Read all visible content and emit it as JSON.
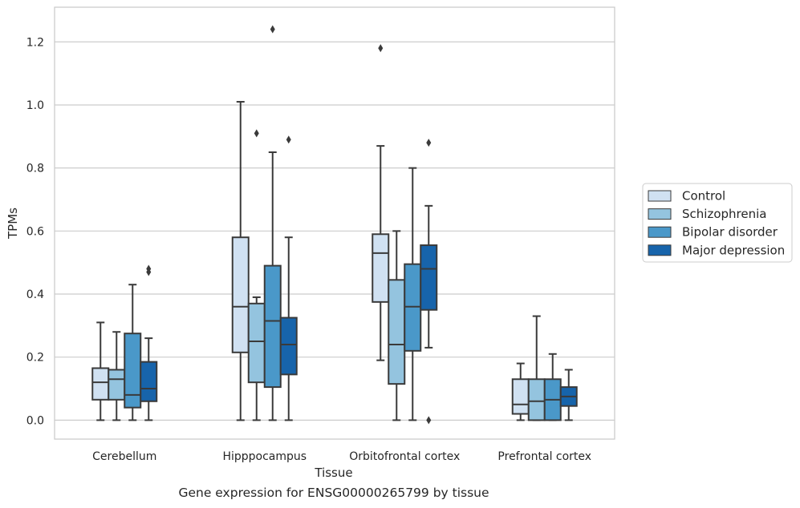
{
  "caption": "Gene expression for ENSG00000265799 by tissue",
  "chart_data": {
    "type": "box",
    "xlabel": "Tissue",
    "ylabel": "TPMs",
    "ylim": [
      -0.06,
      1.31
    ],
    "yticks": [
      0.0,
      0.2,
      0.4,
      0.6,
      0.8,
      1.0,
      1.2
    ],
    "ytick_labels": [
      "0.0",
      "0.2",
      "0.4",
      "0.6",
      "0.8",
      "1.0",
      "1.2"
    ],
    "grid": "horizontal",
    "legend_position": "right",
    "categories": [
      "Cerebellum",
      "Hipppocampus",
      "Orbitofrontal cortex",
      "Prefrontal cortex"
    ],
    "series": [
      {
        "name": "Control",
        "color": "#d0e1f2",
        "boxes": [
          {
            "whislo": 0.0,
            "q1": 0.065,
            "med": 0.12,
            "q3": 0.165,
            "whishi": 0.31,
            "fliers": []
          },
          {
            "whislo": 0.0,
            "q1": 0.215,
            "med": 0.36,
            "q3": 0.58,
            "whishi": 1.01,
            "fliers": []
          },
          {
            "whislo": 0.19,
            "q1": 0.375,
            "med": 0.53,
            "q3": 0.59,
            "whishi": 0.87,
            "fliers": [
              1.18
            ]
          },
          {
            "whislo": 0.0,
            "q1": 0.02,
            "med": 0.05,
            "q3": 0.13,
            "whishi": 0.18,
            "fliers": []
          }
        ]
      },
      {
        "name": "Schizophrenia",
        "color": "#94c4df",
        "boxes": [
          {
            "whislo": 0.0,
            "q1": 0.065,
            "med": 0.13,
            "q3": 0.16,
            "whishi": 0.28,
            "fliers": []
          },
          {
            "whislo": 0.0,
            "q1": 0.12,
            "med": 0.25,
            "q3": 0.37,
            "whishi": 0.39,
            "fliers": [
              0.91
            ]
          },
          {
            "whislo": 0.0,
            "q1": 0.115,
            "med": 0.24,
            "q3": 0.445,
            "whishi": 0.6,
            "fliers": []
          },
          {
            "whislo": 0.0,
            "q1": 0.0,
            "med": 0.06,
            "q3": 0.13,
            "whishi": 0.33,
            "fliers": []
          }
        ]
      },
      {
        "name": "Bipolar disorder",
        "color": "#4a98c9",
        "boxes": [
          {
            "whislo": 0.0,
            "q1": 0.04,
            "med": 0.08,
            "q3": 0.275,
            "whishi": 0.43,
            "fliers": []
          },
          {
            "whislo": 0.0,
            "q1": 0.105,
            "med": 0.315,
            "q3": 0.49,
            "whishi": 0.85,
            "fliers": [
              1.24
            ]
          },
          {
            "whislo": 0.0,
            "q1": 0.22,
            "med": 0.36,
            "q3": 0.495,
            "whishi": 0.8,
            "fliers": []
          },
          {
            "whislo": 0.0,
            "q1": 0.0,
            "med": 0.065,
            "q3": 0.13,
            "whishi": 0.21,
            "fliers": []
          }
        ]
      },
      {
        "name": "Major depression",
        "color": "#1764ab",
        "boxes": [
          {
            "whislo": 0.0,
            "q1": 0.06,
            "med": 0.1,
            "q3": 0.185,
            "whishi": 0.26,
            "fliers": [
              0.47,
              0.48
            ]
          },
          {
            "whislo": 0.0,
            "q1": 0.145,
            "med": 0.24,
            "q3": 0.325,
            "whishi": 0.58,
            "fliers": [
              0.89
            ]
          },
          {
            "whislo": 0.23,
            "q1": 0.35,
            "med": 0.48,
            "q3": 0.555,
            "whishi": 0.68,
            "fliers": [
              0.0,
              0.88
            ]
          },
          {
            "whislo": 0.0,
            "q1": 0.045,
            "med": 0.075,
            "q3": 0.105,
            "whishi": 0.16,
            "fliers": []
          }
        ]
      }
    ]
  }
}
